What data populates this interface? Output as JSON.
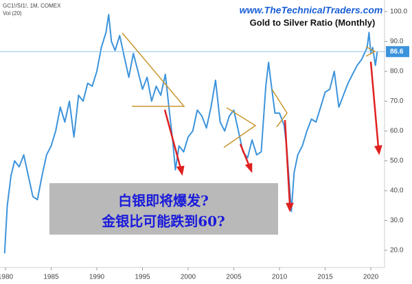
{
  "chart_data": {
    "type": "line",
    "symbol": "GC1!/SI1!, 1M, COMEX",
    "volume_label": "Vol (20)",
    "website": "www.TheTechnicalTraders.com",
    "title": "Gold to Silver Ratio (Monthly)",
    "annotation_lines": [
      "白银即将爆发?",
      "金银比可能跌到60?"
    ],
    "color": "#3b93dc",
    "x": [
      1979.9,
      1980.2,
      1980.6,
      1981,
      1981.5,
      1982,
      1982.5,
      1983,
      1983.5,
      1984,
      1984.5,
      1985,
      1985.5,
      1986,
      1986.5,
      1987,
      1987.5,
      1988,
      1988.5,
      1989,
      1989.5,
      1990,
      1990.5,
      1991,
      1991.3,
      1991.6,
      1992,
      1992.5,
      1993,
      1993.5,
      1994,
      1994.5,
      1995,
      1995.5,
      1996,
      1996.5,
      1997,
      1997.5,
      1998,
      1998.3,
      1998.6,
      1999,
      1999.5,
      2000,
      2000.5,
      2001,
      2001.5,
      2002,
      2002.5,
      2003,
      2003.5,
      2004,
      2004.5,
      2005,
      2005.5,
      2006,
      2006.5,
      2007,
      2007.5,
      2008,
      2008.5,
      2008.8,
      2009,
      2009.5,
      2010,
      2010.5,
      2010.8,
      2011.3,
      2011.6,
      2012,
      2012.5,
      2013,
      2013.5,
      2014,
      2014.5,
      2015,
      2015.5,
      2016,
      2016.5,
      2017,
      2017.5,
      2018,
      2018.5,
      2019,
      2019.3,
      2019.6,
      2019.8,
      2020,
      2020.2,
      2020.5,
      2020.7
    ],
    "values": [
      19,
      35,
      45,
      50,
      48,
      52,
      45,
      38,
      37,
      45,
      52,
      55,
      60,
      68,
      63,
      70,
      58,
      72,
      70,
      76,
      75,
      80,
      88,
      93,
      99,
      90,
      87,
      92,
      85,
      78,
      86,
      80,
      74,
      78,
      70,
      75,
      72,
      79,
      65,
      57,
      47,
      55,
      53,
      58,
      60,
      67,
      65,
      61,
      68,
      77,
      63,
      60,
      65,
      67,
      60,
      53,
      51,
      57,
      52,
      53,
      75,
      83,
      78,
      66,
      66,
      62,
      54,
      33,
      46,
      52,
      55,
      60,
      64,
      63,
      68,
      73,
      74,
      80,
      68,
      72,
      76,
      79,
      82,
      84,
      86,
      88,
      93,
      86,
      88,
      82,
      86.6
    ],
    "price_label": {
      "value": 86.6,
      "label": "86.6"
    },
    "xlim": [
      1979.4,
      2021.5
    ],
    "ylim": [
      14.7,
      103.9
    ],
    "xticks": [
      1980,
      1985,
      1990,
      1995,
      2000,
      2005,
      2010,
      2015,
      2020
    ],
    "yticks": [
      {
        "value": 20,
        "label": "20.0"
      },
      {
        "value": 30,
        "label": "30.0"
      },
      {
        "value": 40,
        "label": "40.0"
      },
      {
        "value": 50,
        "label": "50.0"
      },
      {
        "value": 60,
        "label": "60.0"
      },
      {
        "value": 70,
        "label": "70.0"
      },
      {
        "value": 80,
        "label": "80.0"
      },
      {
        "value": 90,
        "label": "90.0"
      },
      {
        "value": 100,
        "label": "100.0"
      }
    ]
  }
}
